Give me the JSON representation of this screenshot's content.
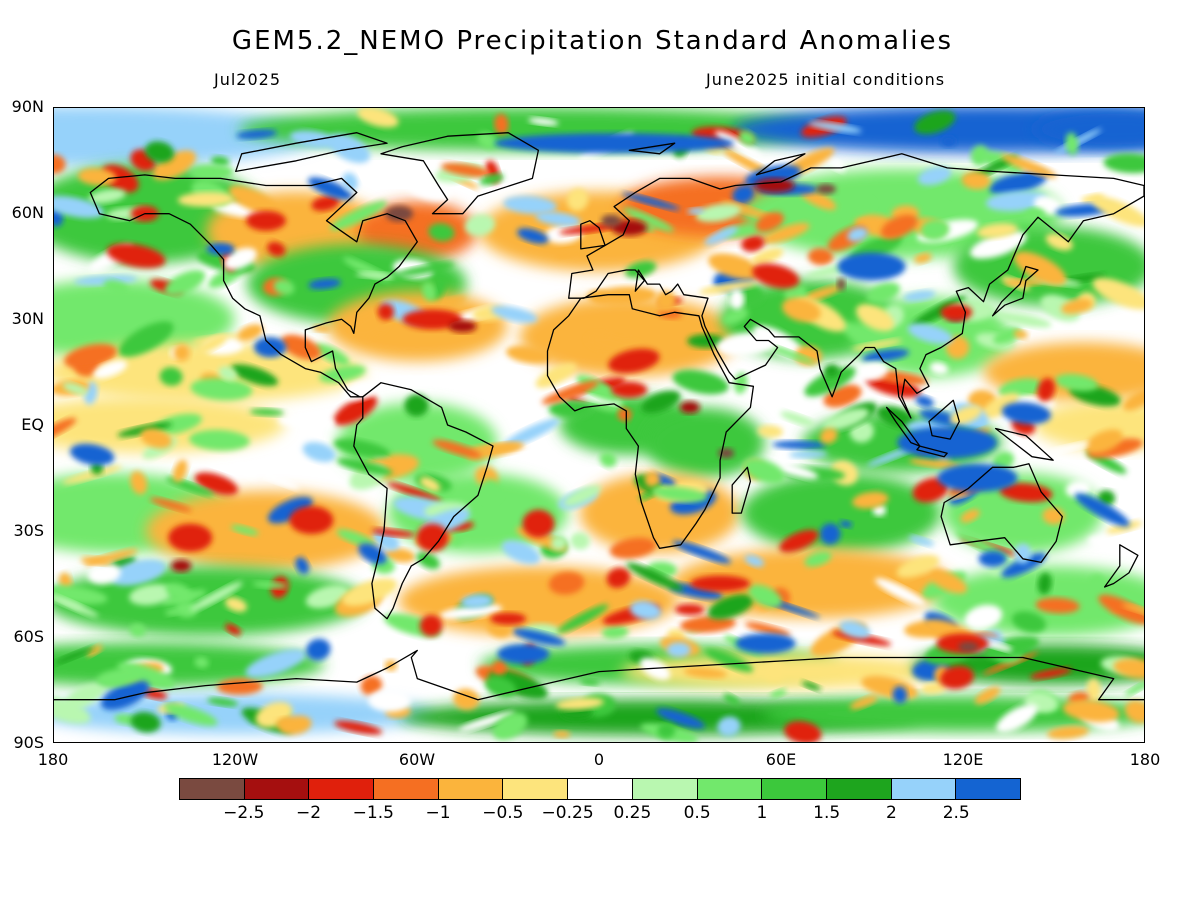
{
  "header": {
    "title": "GEM5.2_NEMO Precipitation Standard Anomalies",
    "left_subtitle": "Jul2025",
    "right_subtitle": "June2025 initial conditions"
  },
  "axes": {
    "lat_labels": [
      "90N",
      "60N",
      "30N",
      "EQ",
      "30S",
      "60S",
      "90S"
    ],
    "lon_labels": [
      "180",
      "120W",
      "60W",
      "0",
      "60E",
      "120E",
      "180"
    ]
  },
  "legend": {
    "colors": [
      "#7a4a40",
      "#a50f0f",
      "#e0200c",
      "#f56f22",
      "#fbb43c",
      "#fde47c",
      "#ffffff",
      "#b9f7b0",
      "#72e86c",
      "#3cc83c",
      "#1ea51e",
      "#96d2fa",
      "#1464d2"
    ],
    "labels": [
      "-2.5",
      "-2",
      "-1.5",
      "-1",
      "-0.5",
      "-0.25",
      "0.25",
      "0.5",
      "1",
      "1.5",
      "2",
      "2.5"
    ]
  },
  "map": {
    "background_color": "#ffffff",
    "coastline_color": "#000000"
  }
}
